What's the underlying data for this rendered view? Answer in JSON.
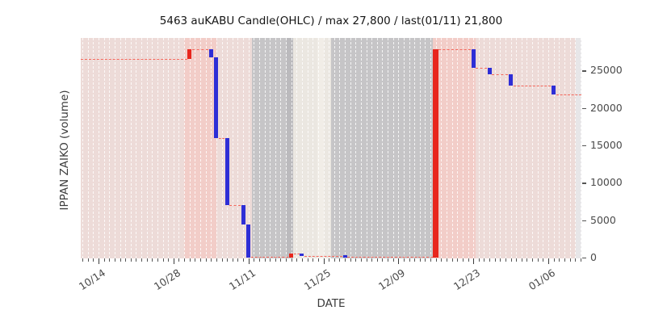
{
  "chart_data": {
    "type": "candlestick-ohlc",
    "title": "5463 auKABU Candle(OHLC) / max 27,800 / last(01/11) 21,800",
    "xlabel": "DATE",
    "ylabel": "IPPAN ZAIKO (volume)",
    "max_value": 27800,
    "last": {
      "date": "01/11",
      "value": 21800
    },
    "x_axis": {
      "tick_labels": [
        "10/14",
        "10/28",
        "11/11",
        "11/25",
        "12/09",
        "12/23",
        "01/06"
      ],
      "tick_days": [
        4,
        18,
        32,
        46,
        60,
        74,
        88
      ],
      "day0_date": "10/10",
      "visible_day_range": [
        0.7,
        94.2
      ],
      "minor_tick_every_days": 1
    },
    "y_axis": {
      "side": "right",
      "ticks": [
        0,
        5000,
        10000,
        15000,
        20000,
        25000
      ],
      "value_range": [
        0,
        29400
      ],
      "grid": false
    },
    "legend": "none",
    "candles": [
      {
        "date": "10/31",
        "day": 21,
        "open": 26500,
        "close": 27800,
        "dir": "up"
      },
      {
        "date": "11/04",
        "day": 25,
        "open": 27800,
        "close": 26800,
        "dir": "down"
      },
      {
        "date": "11/05",
        "day": 26,
        "open": 26800,
        "close": 16000,
        "dir": "down"
      },
      {
        "date": "11/07",
        "day": 28,
        "open": 16000,
        "close": 7000,
        "dir": "down"
      },
      {
        "date": "11/10",
        "day": 31,
        "open": 7000,
        "close": 4400,
        "dir": "down"
      },
      {
        "date": "11/11",
        "day": 32,
        "open": 4400,
        "close": 0,
        "dir": "down"
      },
      {
        "date": "11/19",
        "day": 40,
        "open": 0,
        "close": 500,
        "dir": "up"
      },
      {
        "date": "11/21",
        "day": 42,
        "open": 500,
        "close": 200,
        "dir": "down"
      },
      {
        "date": "11/29",
        "day": 50,
        "open": 200,
        "close": 0,
        "dir": "down"
      },
      {
        "date": "12/16",
        "day": 67,
        "open": 0,
        "close": 27800,
        "dir": "up",
        "w": 7
      },
      {
        "date": "12/23",
        "day": 74,
        "open": 27800,
        "close": 25400,
        "dir": "down"
      },
      {
        "date": "12/26",
        "day": 77,
        "open": 25400,
        "close": 24500,
        "dir": "down"
      },
      {
        "date": "12/30",
        "day": 81,
        "open": 24500,
        "close": 23000,
        "dir": "down"
      },
      {
        "date": "01/07",
        "day": 89,
        "open": 23000,
        "close": 21800,
        "dir": "down"
      }
    ],
    "connector_style": "red dashed step line joining closes",
    "bands": [
      {
        "from_day": 0.7,
        "to_day": 20.0,
        "color": "pink_light"
      },
      {
        "from_day": 20.0,
        "to_day": 26.0,
        "color": "pink_mid"
      },
      {
        "from_day": 26.0,
        "to_day": 32.7,
        "color": "pink_light"
      },
      {
        "from_day": 32.7,
        "to_day": 39.1,
        "color": "gray"
      },
      {
        "from_day": 39.1,
        "to_day": 40.3,
        "color": "gray_dark"
      },
      {
        "from_day": 40.3,
        "to_day": 44.9,
        "color": "cream"
      },
      {
        "from_day": 44.9,
        "to_day": 46.1,
        "color": "cream_light"
      },
      {
        "from_day": 46.1,
        "to_day": 47.4,
        "color": "cream"
      },
      {
        "from_day": 47.4,
        "to_day": 66.4,
        "color": "gray"
      },
      {
        "from_day": 66.4,
        "to_day": 74.4,
        "color": "pink_mid"
      },
      {
        "from_day": 74.4,
        "to_day": 93.2,
        "color": "pink_light"
      },
      {
        "from_day": 93.2,
        "to_day": 94.2,
        "color": "edge_sliver"
      }
    ],
    "colors": {
      "up": "#e8261d",
      "down": "#2e2ed6",
      "dashed_line": "#f4675c",
      "pink_light": "#eddbd8",
      "pink_mid": "#f2cdc8",
      "gray": "#c6c5c7",
      "gray_dark": "#bbbabd",
      "cream": "#ebe7e1",
      "cream_light": "#f1ede7",
      "edge_sliver": "#e7e6e8",
      "grid_dash": "rgba(255,255,255,0.8)"
    }
  }
}
